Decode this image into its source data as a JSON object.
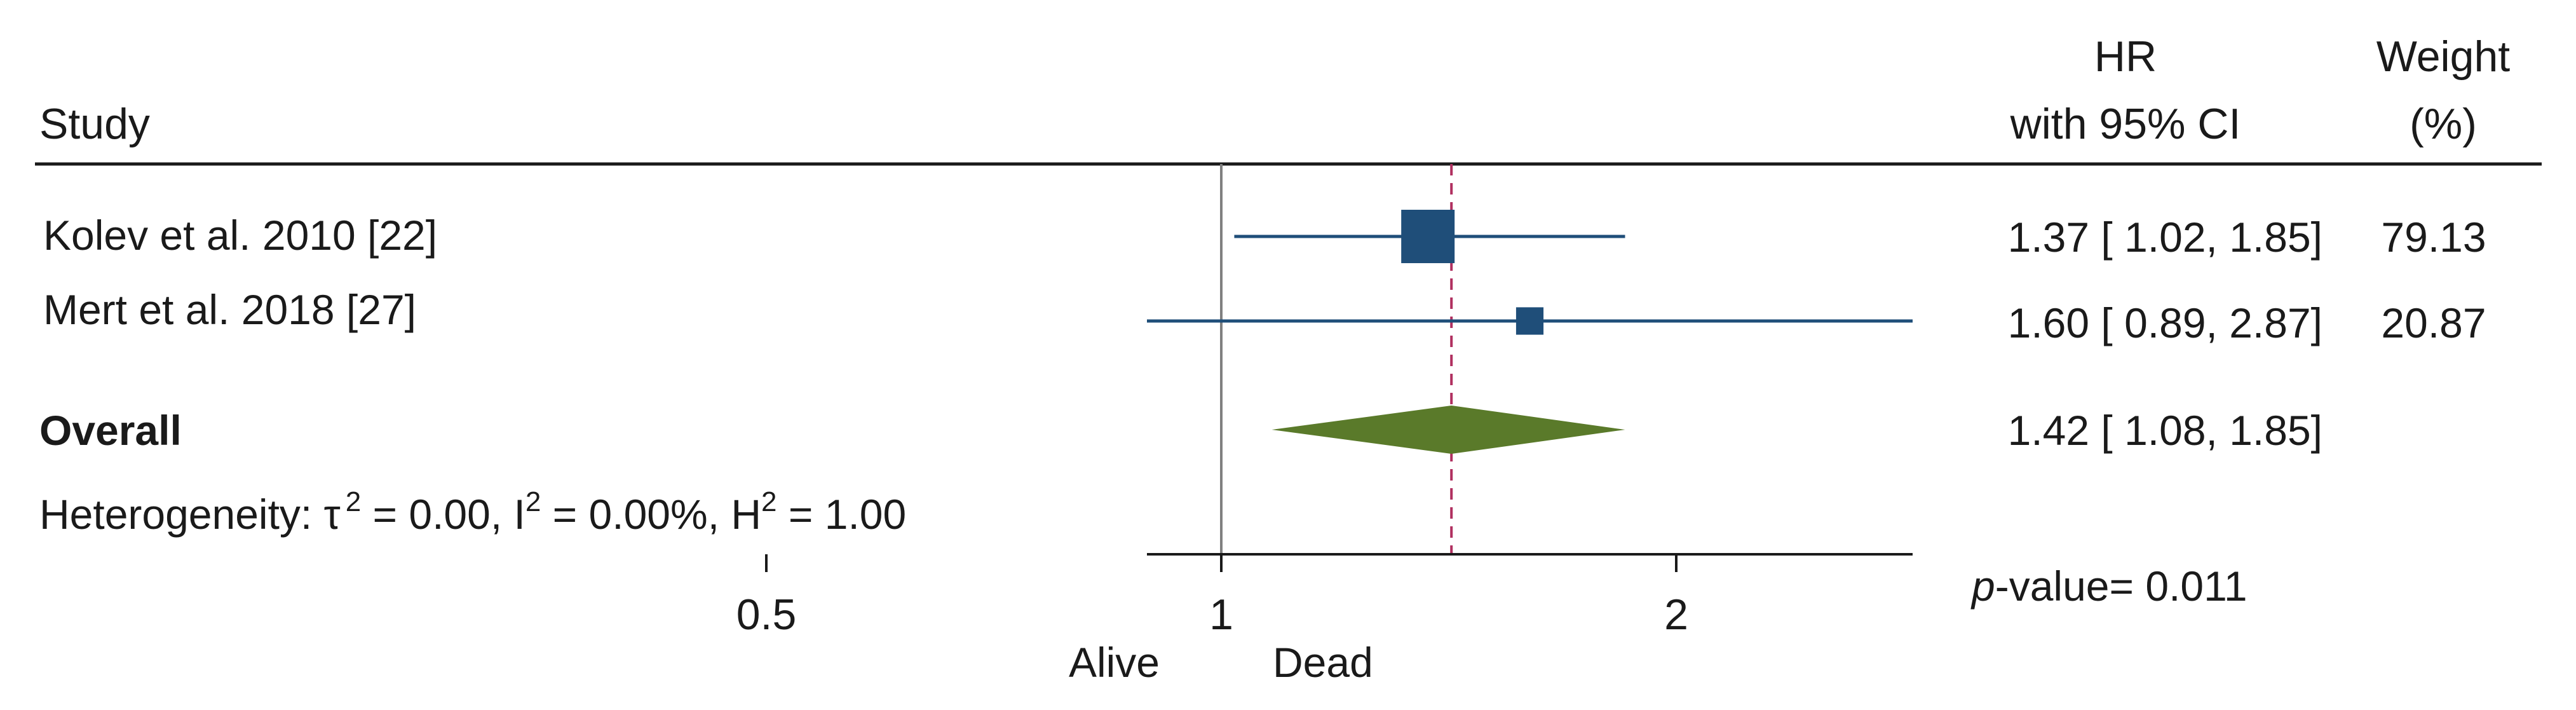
{
  "header": {
    "study": "Study",
    "hr_line1": "HR",
    "hr_line2": "with 95% CI",
    "weight_line1": "Weight",
    "weight_line2": "(%)"
  },
  "heterogeneity": {
    "prefix": "Heterogeneity: ",
    "tau": "τ",
    "tau_sup": "2",
    "tau_val": " = 0.00, I",
    "i_sup": "2",
    "i_val": " = 0.00%, H",
    "h_sup": "2",
    "h_val": " = 1.00"
  },
  "p_value": {
    "label": "p",
    "rest": "-value= 0.011"
  },
  "direction_labels": {
    "left": "Alive",
    "right": "Dead"
  },
  "colors": {
    "study_marker": "#1f4e79",
    "overall_diamond": "#5a7a2a",
    "overall_line": "#b03060",
    "null_line": "#808080",
    "text": "#1a1a1a"
  },
  "chart_data": {
    "type": "forest",
    "x_scale": "log",
    "x_ticks": [
      0.5,
      1,
      2
    ],
    "x_tick_labels": [
      "0.5",
      "1",
      "2"
    ],
    "null_value": 1,
    "overall_line_value": 1.42,
    "studies": [
      {
        "label": "Kolev et al. 2010 [22]",
        "hr": 1.37,
        "lo": 1.02,
        "hi": 1.85,
        "weight": 79.13,
        "ci_text": "1.37 [ 1.02,  1.85]",
        "weight_text": "79.13"
      },
      {
        "label": "Mert et al. 2018 [27]",
        "hr": 1.6,
        "lo": 0.89,
        "hi": 2.87,
        "weight": 20.87,
        "ci_text": "1.60 [ 0.89,  2.87]",
        "weight_text": "20.87"
      }
    ],
    "overall": {
      "label": "Overall",
      "hr": 1.42,
      "lo": 1.08,
      "hi": 1.85,
      "ci_text": "1.42 [ 1.08,  1.85]"
    }
  }
}
